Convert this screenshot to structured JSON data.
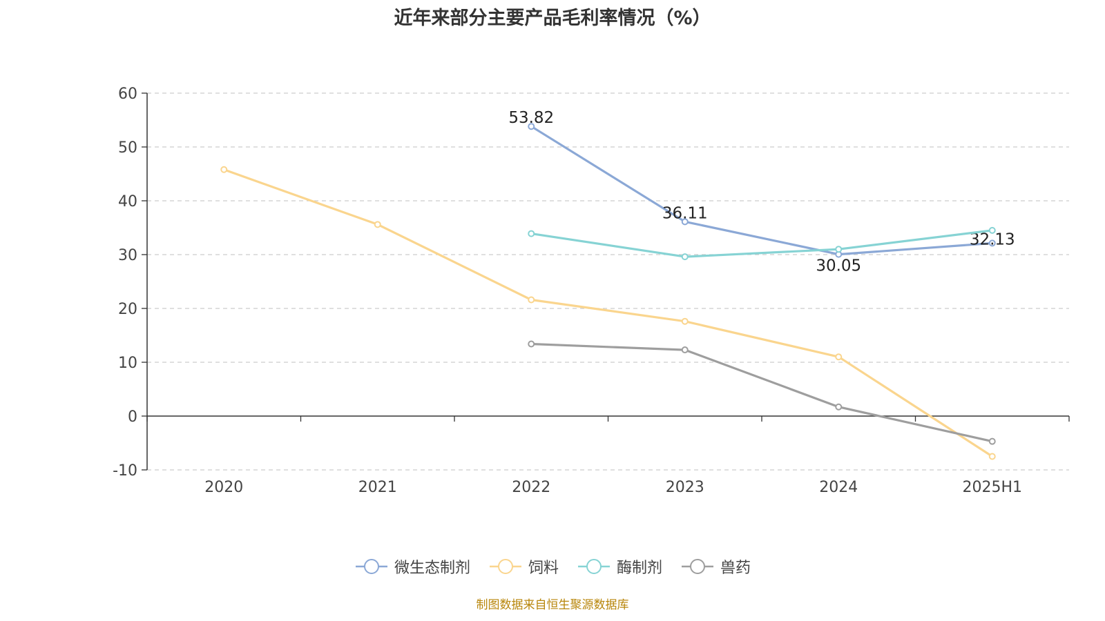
{
  "title": "近年来部分主要产品毛利率情况（%）",
  "source": "制图数据来自恒生聚源数据库",
  "chart_data": {
    "type": "line",
    "categories": [
      "2020",
      "2021",
      "2022",
      "2023",
      "2024",
      "2025H1"
    ],
    "ylim": [
      -10,
      60
    ],
    "yticks": [
      -10,
      0,
      10,
      20,
      30,
      40,
      50,
      60
    ],
    "grid": true,
    "legend_position": "bottom",
    "series": [
      {
        "name": "微生态制剂",
        "color": "#8ba8d6",
        "values": [
          null,
          null,
          53.82,
          36.11,
          30.05,
          32.13
        ],
        "show_labels": true
      },
      {
        "name": "饲料",
        "color": "#fad58e",
        "values": [
          45.8,
          35.6,
          21.6,
          17.6,
          11.0,
          -7.5
        ],
        "show_labels": false
      },
      {
        "name": "酶制剂",
        "color": "#86d3d4",
        "values": [
          null,
          null,
          33.9,
          29.6,
          31.0,
          34.5
        ],
        "show_labels": false
      },
      {
        "name": "兽药",
        "color": "#9e9e9e",
        "values": [
          null,
          null,
          13.4,
          12.3,
          1.7,
          -4.7
        ],
        "show_labels": false
      }
    ]
  }
}
